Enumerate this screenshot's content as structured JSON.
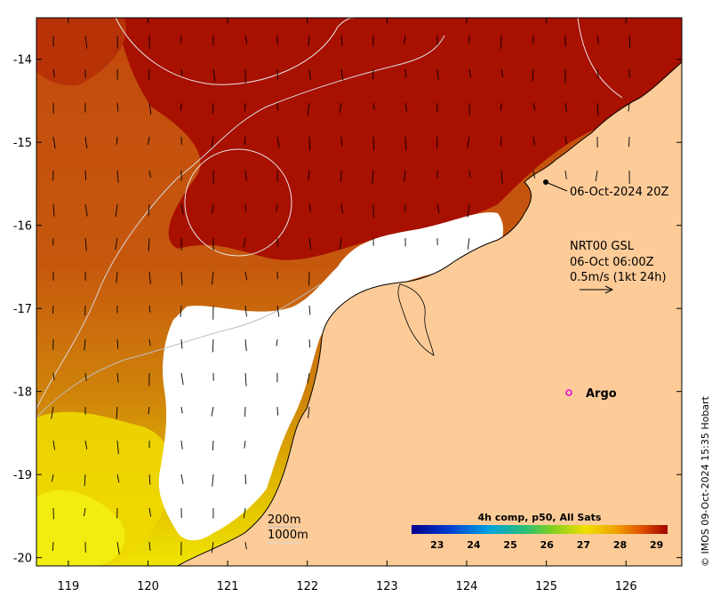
{
  "map": {
    "x_axis": {
      "range": [
        118.6,
        126.7
      ],
      "ticks": [
        119,
        120,
        121,
        122,
        123,
        124,
        125,
        126
      ]
    },
    "y_axis": {
      "range": [
        -20.1,
        -13.5
      ],
      "ticks": [
        -14,
        -15,
        -16,
        -17,
        -18,
        -19,
        -20
      ]
    },
    "land_color": "#fccb98",
    "nodata_color": "#ffffff",
    "ocean_colors": {
      "warm": "#a50f00",
      "mid": "#c8500a",
      "cool": "#e0c000"
    }
  },
  "annotations": {
    "satellite_pass": "06-Oct-2024 20Z",
    "current_source": "NRT00 GSL",
    "current_time": "06-Oct 06:00Z",
    "current_scale": "0.5m/s (1kt 24h)",
    "argo_label": "Argo",
    "isobath_200": "200m",
    "isobath_1000": "1000m"
  },
  "colorbar": {
    "title": "4h comp, p50, All Sats",
    "ticks": [
      23,
      24,
      25,
      26,
      27,
      28,
      29
    ],
    "colors": [
      "#00008b",
      "#0040d0",
      "#00a0e0",
      "#30c070",
      "#80d020",
      "#f0e000",
      "#f0a000",
      "#e05000",
      "#a00000"
    ]
  },
  "credit": "© IMOS 09-Oct-2024 15:35 Hobart"
}
